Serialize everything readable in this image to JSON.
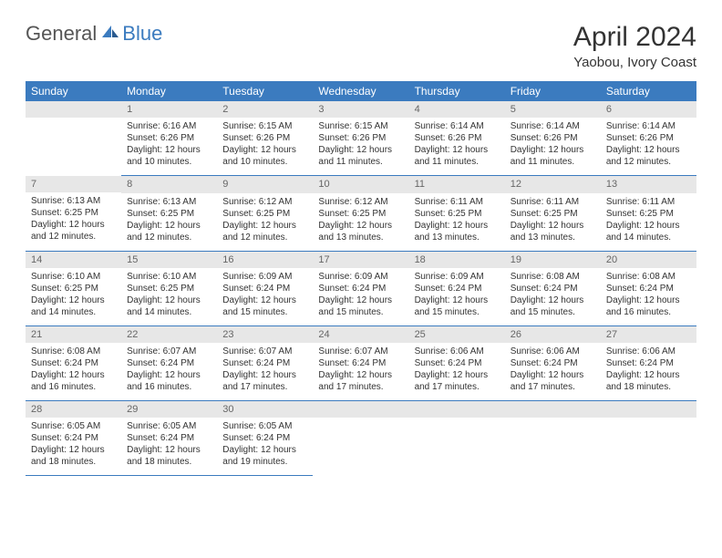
{
  "logo": {
    "general": "General",
    "blue": "Blue"
  },
  "title": "April 2024",
  "location": "Yaobou, Ivory Coast",
  "weekdays": [
    "Sunday",
    "Monday",
    "Tuesday",
    "Wednesday",
    "Thursday",
    "Friday",
    "Saturday"
  ],
  "colors": {
    "header_bg": "#3b7bbf",
    "header_text": "#ffffff",
    "daynum_bg": "#e7e7e7",
    "daynum_text": "#666666",
    "border": "#3b7bbf",
    "body_text": "#333333"
  },
  "fonts": {
    "title_size": 30,
    "location_size": 15,
    "weekday_size": 12,
    "daynum_size": 11,
    "body_size": 10
  },
  "weeks": [
    [
      null,
      {
        "n": "1",
        "sunrise": "Sunrise: 6:16 AM",
        "sunset": "Sunset: 6:26 PM",
        "daylight": "Daylight: 12 hours and 10 minutes."
      },
      {
        "n": "2",
        "sunrise": "Sunrise: 6:15 AM",
        "sunset": "Sunset: 6:26 PM",
        "daylight": "Daylight: 12 hours and 10 minutes."
      },
      {
        "n": "3",
        "sunrise": "Sunrise: 6:15 AM",
        "sunset": "Sunset: 6:26 PM",
        "daylight": "Daylight: 12 hours and 11 minutes."
      },
      {
        "n": "4",
        "sunrise": "Sunrise: 6:14 AM",
        "sunset": "Sunset: 6:26 PM",
        "daylight": "Daylight: 12 hours and 11 minutes."
      },
      {
        "n": "5",
        "sunrise": "Sunrise: 6:14 AM",
        "sunset": "Sunset: 6:26 PM",
        "daylight": "Daylight: 12 hours and 11 minutes."
      },
      {
        "n": "6",
        "sunrise": "Sunrise: 6:14 AM",
        "sunset": "Sunset: 6:26 PM",
        "daylight": "Daylight: 12 hours and 12 minutes."
      }
    ],
    [
      {
        "n": "7",
        "sunrise": "Sunrise: 6:13 AM",
        "sunset": "Sunset: 6:25 PM",
        "daylight": "Daylight: 12 hours and 12 minutes."
      },
      {
        "n": "8",
        "sunrise": "Sunrise: 6:13 AM",
        "sunset": "Sunset: 6:25 PM",
        "daylight": "Daylight: 12 hours and 12 minutes."
      },
      {
        "n": "9",
        "sunrise": "Sunrise: 6:12 AM",
        "sunset": "Sunset: 6:25 PM",
        "daylight": "Daylight: 12 hours and 12 minutes."
      },
      {
        "n": "10",
        "sunrise": "Sunrise: 6:12 AM",
        "sunset": "Sunset: 6:25 PM",
        "daylight": "Daylight: 12 hours and 13 minutes."
      },
      {
        "n": "11",
        "sunrise": "Sunrise: 6:11 AM",
        "sunset": "Sunset: 6:25 PM",
        "daylight": "Daylight: 12 hours and 13 minutes."
      },
      {
        "n": "12",
        "sunrise": "Sunrise: 6:11 AM",
        "sunset": "Sunset: 6:25 PM",
        "daylight": "Daylight: 12 hours and 13 minutes."
      },
      {
        "n": "13",
        "sunrise": "Sunrise: 6:11 AM",
        "sunset": "Sunset: 6:25 PM",
        "daylight": "Daylight: 12 hours and 14 minutes."
      }
    ],
    [
      {
        "n": "14",
        "sunrise": "Sunrise: 6:10 AM",
        "sunset": "Sunset: 6:25 PM",
        "daylight": "Daylight: 12 hours and 14 minutes."
      },
      {
        "n": "15",
        "sunrise": "Sunrise: 6:10 AM",
        "sunset": "Sunset: 6:25 PM",
        "daylight": "Daylight: 12 hours and 14 minutes."
      },
      {
        "n": "16",
        "sunrise": "Sunrise: 6:09 AM",
        "sunset": "Sunset: 6:24 PM",
        "daylight": "Daylight: 12 hours and 15 minutes."
      },
      {
        "n": "17",
        "sunrise": "Sunrise: 6:09 AM",
        "sunset": "Sunset: 6:24 PM",
        "daylight": "Daylight: 12 hours and 15 minutes."
      },
      {
        "n": "18",
        "sunrise": "Sunrise: 6:09 AM",
        "sunset": "Sunset: 6:24 PM",
        "daylight": "Daylight: 12 hours and 15 minutes."
      },
      {
        "n": "19",
        "sunrise": "Sunrise: 6:08 AM",
        "sunset": "Sunset: 6:24 PM",
        "daylight": "Daylight: 12 hours and 15 minutes."
      },
      {
        "n": "20",
        "sunrise": "Sunrise: 6:08 AM",
        "sunset": "Sunset: 6:24 PM",
        "daylight": "Daylight: 12 hours and 16 minutes."
      }
    ],
    [
      {
        "n": "21",
        "sunrise": "Sunrise: 6:08 AM",
        "sunset": "Sunset: 6:24 PM",
        "daylight": "Daylight: 12 hours and 16 minutes."
      },
      {
        "n": "22",
        "sunrise": "Sunrise: 6:07 AM",
        "sunset": "Sunset: 6:24 PM",
        "daylight": "Daylight: 12 hours and 16 minutes."
      },
      {
        "n": "23",
        "sunrise": "Sunrise: 6:07 AM",
        "sunset": "Sunset: 6:24 PM",
        "daylight": "Daylight: 12 hours and 17 minutes."
      },
      {
        "n": "24",
        "sunrise": "Sunrise: 6:07 AM",
        "sunset": "Sunset: 6:24 PM",
        "daylight": "Daylight: 12 hours and 17 minutes."
      },
      {
        "n": "25",
        "sunrise": "Sunrise: 6:06 AM",
        "sunset": "Sunset: 6:24 PM",
        "daylight": "Daylight: 12 hours and 17 minutes."
      },
      {
        "n": "26",
        "sunrise": "Sunrise: 6:06 AM",
        "sunset": "Sunset: 6:24 PM",
        "daylight": "Daylight: 12 hours and 17 minutes."
      },
      {
        "n": "27",
        "sunrise": "Sunrise: 6:06 AM",
        "sunset": "Sunset: 6:24 PM",
        "daylight": "Daylight: 12 hours and 18 minutes."
      }
    ],
    [
      {
        "n": "28",
        "sunrise": "Sunrise: 6:05 AM",
        "sunset": "Sunset: 6:24 PM",
        "daylight": "Daylight: 12 hours and 18 minutes."
      },
      {
        "n": "29",
        "sunrise": "Sunrise: 6:05 AM",
        "sunset": "Sunset: 6:24 PM",
        "daylight": "Daylight: 12 hours and 18 minutes."
      },
      {
        "n": "30",
        "sunrise": "Sunrise: 6:05 AM",
        "sunset": "Sunset: 6:24 PM",
        "daylight": "Daylight: 12 hours and 19 minutes."
      },
      null,
      null,
      null,
      null
    ]
  ]
}
